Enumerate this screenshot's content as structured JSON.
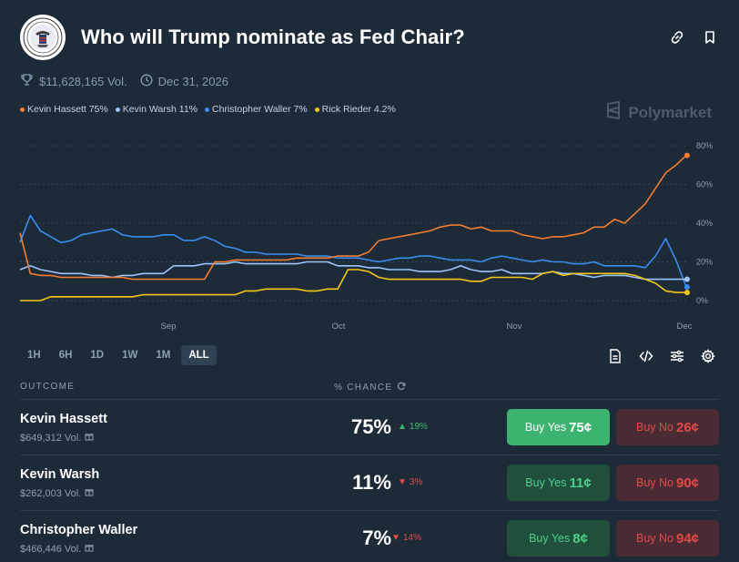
{
  "header": {
    "title": "Who will Trump nominate as Fed Chair?",
    "logo_icon": "federal-reserve-seal-icon",
    "link_icon": "link-icon",
    "bookmark_icon": "bookmark-icon"
  },
  "meta": {
    "volume": "$11,628,165 Vol.",
    "end_date": "Dec 31, 2026",
    "trophy_icon": "trophy-icon",
    "clock_icon": "clock-icon"
  },
  "brand": "Polymarket",
  "legend": [
    {
      "label": "Kevin Hassett 75%",
      "color": "#f47d2f"
    },
    {
      "label": "Kevin Warsh 11%",
      "color": "#9ec5ff"
    },
    {
      "label": "Christopher Waller 7%",
      "color": "#3b8cf0"
    },
    {
      "label": "Rick Rieder 4.2%",
      "color": "#f5c518"
    }
  ],
  "chart_data": {
    "type": "line",
    "x_ticks": [
      "Sep",
      "Oct",
      "Nov",
      "Dec"
    ],
    "y_ticks": [
      "80%",
      "60%",
      "40%",
      "20%",
      "0%"
    ],
    "ylim": [
      0,
      80
    ],
    "grid": true,
    "legend_position": "top-left",
    "series": [
      {
        "name": "Kevin Hassett",
        "color": "#f47d2f",
        "values": [
          35,
          14,
          13,
          13,
          12,
          12,
          12,
          12,
          12,
          12,
          12,
          11,
          11,
          11,
          11,
          11,
          11,
          11,
          11,
          20,
          20,
          21,
          21,
          21,
          21,
          21,
          21,
          22,
          22,
          22,
          22,
          23,
          23,
          23,
          25,
          31,
          32,
          33,
          34,
          35,
          36,
          38,
          39,
          39,
          37,
          38,
          36,
          36,
          36,
          34,
          33,
          32,
          33,
          33,
          34,
          35,
          38,
          38,
          42,
          40,
          45,
          50,
          58,
          66,
          70,
          75
        ]
      },
      {
        "name": "Kevin Warsh",
        "color": "#9ec5ff",
        "values": [
          16,
          18,
          16,
          15,
          14,
          14,
          14,
          13,
          13,
          12,
          13,
          13,
          14,
          14,
          14,
          18,
          18,
          18,
          19,
          19,
          19,
          20,
          19,
          19,
          19,
          19,
          19,
          19,
          20,
          20,
          20,
          18,
          18,
          18,
          17,
          17,
          16,
          16,
          16,
          15,
          15,
          15,
          16,
          18,
          16,
          15,
          15,
          16,
          14,
          14,
          14,
          14,
          15,
          14,
          14,
          13,
          12,
          13,
          13,
          13,
          12,
          11,
          11,
          11,
          11,
          11
        ]
      },
      {
        "name": "Christopher Waller",
        "color": "#3b8cf0",
        "values": [
          30,
          44,
          36,
          33,
          30,
          31,
          34,
          35,
          36,
          37,
          34,
          33,
          33,
          33,
          34,
          34,
          31,
          31,
          33,
          31,
          28,
          27,
          25,
          25,
          24,
          24,
          24,
          24,
          23,
          23,
          23,
          22,
          22,
          22,
          21,
          20,
          21,
          22,
          22,
          23,
          23,
          22,
          21,
          21,
          21,
          20,
          22,
          23,
          22,
          21,
          20,
          21,
          20,
          20,
          19,
          19,
          20,
          18,
          18,
          18,
          18,
          17,
          23,
          32,
          21,
          7
        ]
      },
      {
        "name": "Rick Rieder",
        "color": "#f5c518",
        "values": [
          0,
          0,
          0,
          2,
          2,
          2,
          2,
          2,
          2,
          2,
          2,
          2,
          3,
          3,
          3,
          3,
          3,
          3,
          3,
          3,
          3,
          3,
          5,
          5,
          6,
          6,
          6,
          6,
          5,
          5,
          6,
          6,
          16,
          16,
          15,
          12,
          11,
          11,
          11,
          11,
          11,
          11,
          11,
          11,
          10,
          10,
          12,
          12,
          12,
          12,
          11,
          14,
          15,
          13,
          14,
          14,
          14,
          14,
          14,
          14,
          13,
          11,
          9,
          5,
          4.2,
          4.2
        ]
      }
    ]
  },
  "ranges": [
    "1H",
    "6H",
    "1D",
    "1W",
    "1M",
    "ALL"
  ],
  "active_range": "ALL",
  "tools": [
    "document-icon",
    "code-icon",
    "sliders-icon",
    "settings-icon"
  ],
  "table": {
    "col_outcome": "OUTCOME",
    "col_chance": "% CHANCE",
    "rows": [
      {
        "name": "Kevin Hassett",
        "volume": "$649,312 Vol.",
        "pct": "75%",
        "change": "19%",
        "direction": "up",
        "yes_label": "Buy Yes",
        "yes_price": "75¢",
        "no_label": "Buy No",
        "no_price": "26¢"
      },
      {
        "name": "Kevin Warsh",
        "volume": "$262,003 Vol.",
        "pct": "11%",
        "change": "3%",
        "direction": "down",
        "yes_label": "Buy Yes",
        "yes_price": "11¢",
        "no_label": "Buy No",
        "no_price": "90¢"
      },
      {
        "name": "Christopher Waller",
        "volume": "$466,446 Vol.",
        "pct": "7%",
        "change": "14%",
        "direction": "down",
        "yes_label": "Buy Yes",
        "yes_price": "8¢",
        "no_label": "Buy No",
        "no_price": "94¢"
      }
    ]
  }
}
